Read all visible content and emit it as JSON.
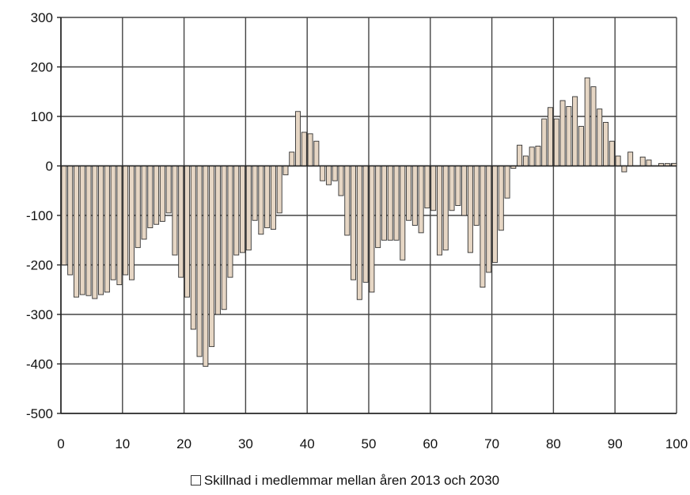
{
  "chart_data": {
    "type": "bar",
    "title": "",
    "xlabel": "",
    "ylabel": "",
    "xlim": [
      0,
      100
    ],
    "ylim": [
      -500,
      300
    ],
    "x_ticks": [
      0,
      10,
      20,
      30,
      40,
      50,
      60,
      70,
      80,
      90,
      100
    ],
    "y_ticks": [
      300,
      200,
      100,
      0,
      -100,
      -200,
      -300,
      -400,
      -500
    ],
    "grid": true,
    "legend_position": "bottom",
    "bar_color": "#e6d6c4",
    "bar_edge_color": "#333333",
    "series": [
      {
        "name": "Skillnad i medlemmar mellan åren 2013 och 2030",
        "x": [
          0,
          1,
          2,
          3,
          4,
          5,
          6,
          7,
          8,
          9,
          10,
          11,
          12,
          13,
          14,
          15,
          16,
          17,
          18,
          19,
          20,
          21,
          22,
          23,
          24,
          25,
          26,
          27,
          28,
          29,
          30,
          31,
          32,
          33,
          34,
          35,
          36,
          37,
          38,
          39,
          40,
          41,
          42,
          43,
          44,
          45,
          46,
          47,
          48,
          49,
          50,
          51,
          52,
          53,
          54,
          55,
          56,
          57,
          58,
          59,
          60,
          61,
          62,
          63,
          64,
          65,
          66,
          67,
          68,
          69,
          70,
          71,
          72,
          73,
          74,
          75,
          76,
          77,
          78,
          79,
          80,
          81,
          82,
          83,
          84,
          85,
          86,
          87,
          88,
          89,
          90,
          91,
          92,
          93,
          94,
          95,
          96,
          97,
          98,
          99,
          100
        ],
        "values": [
          -200,
          -220,
          -265,
          -260,
          -262,
          -268,
          -260,
          -255,
          -230,
          -240,
          -220,
          -230,
          -165,
          -148,
          -125,
          -118,
          -112,
          -95,
          -180,
          -225,
          -265,
          -330,
          -385,
          -405,
          -365,
          -300,
          -290,
          -225,
          -180,
          -175,
          -170,
          -110,
          -138,
          -125,
          -128,
          -95,
          -18,
          28,
          110,
          68,
          65,
          50,
          -30,
          -38,
          -30,
          -60,
          -140,
          -230,
          -270,
          -235,
          -255,
          -165,
          -150,
          -150,
          -150,
          -190,
          -110,
          -120,
          -135,
          -85,
          -90,
          -180,
          -170,
          -90,
          -80,
          -100,
          -175,
          -120,
          -245,
          -215,
          -195,
          -130,
          -65,
          -5,
          42,
          20,
          38,
          40,
          95,
          118,
          95,
          132,
          120,
          140,
          80,
          178,
          160,
          115,
          88,
          50,
          20,
          -12,
          28,
          0,
          18,
          12,
          0,
          5,
          5,
          5,
          5
        ]
      }
    ],
    "legend_label": "Skillnad i medlemmar mellan åren 2013 och 2030"
  }
}
